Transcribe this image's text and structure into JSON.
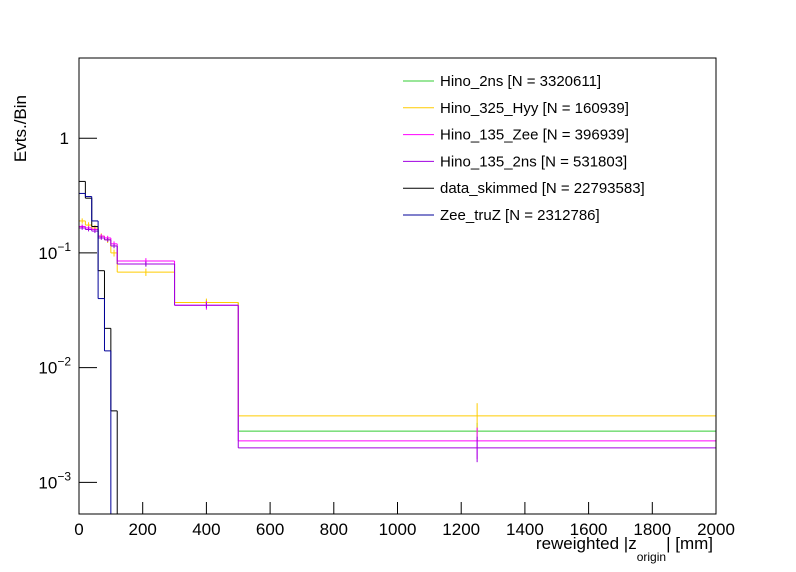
{
  "chart_data": {
    "type": "histogram",
    "y_label": "Evts./Bin",
    "x_label": {
      "before": "reweighted |z",
      "sub": "origin",
      "after": "| [mm]"
    },
    "bins": [
      0,
      20,
      40,
      60,
      80,
      100,
      120,
      300,
      500,
      2000
    ],
    "xlim": [
      0,
      2000
    ],
    "xticks": [
      0,
      200,
      400,
      600,
      800,
      1000,
      1200,
      1400,
      1600,
      1800,
      2000
    ],
    "ylim": [
      0.00053,
      5
    ],
    "log_y": true,
    "yticks": [
      {
        "value": 0.001,
        "label": "10",
        "exponent": "−3"
      },
      {
        "value": 0.01,
        "label": "10",
        "exponent": "−2"
      },
      {
        "value": 0.1,
        "label": "10",
        "exponent": "−1"
      },
      1
    ],
    "legend": "top-right",
    "series": [
      {
        "name": "Hino_2ns [N = 3320611]",
        "color": "#33cc33",
        "values": [
          0.17,
          0.165,
          0.16,
          0.14,
          0.13,
          0.115,
          0.08,
          0.037,
          0.0028
        ],
        "errors": [
          0.006,
          0.006,
          0.006,
          0.005,
          0.005,
          0.005,
          0.004,
          0.002,
          0.0005
        ]
      },
      {
        "name": "Hino_325_Hyy [N = 160939]",
        "color": "#ffcc00",
        "values": [
          0.19,
          0.175,
          0.165,
          0.14,
          0.13,
          0.1,
          0.068,
          0.037,
          0.0038
        ],
        "errors": [
          0.01,
          0.01,
          0.01,
          0.008,
          0.008,
          0.007,
          0.005,
          0.003,
          0.0011
        ]
      },
      {
        "name": "Hino_135_Zee [N = 396939]",
        "color": "#ff00ff",
        "values": [
          0.17,
          0.165,
          0.16,
          0.14,
          0.135,
          0.12,
          0.085,
          0.035,
          0.0023
        ],
        "errors": [
          0.007,
          0.007,
          0.007,
          0.006,
          0.006,
          0.006,
          0.005,
          0.003,
          0.0007
        ]
      },
      {
        "name": "Hino_135_2ns [N = 531803]",
        "color": "#a000e0",
        "values": [
          0.165,
          0.16,
          0.155,
          0.135,
          0.13,
          0.115,
          0.08,
          0.035,
          0.002
        ],
        "errors": [
          0.006,
          0.006,
          0.006,
          0.005,
          0.005,
          0.005,
          0.004,
          0.002,
          0.0005
        ]
      },
      {
        "name": "data_skimmed [N = 22793583]",
        "color": "#000000",
        "values": [
          0.42,
          0.3,
          0.17,
          0.07,
          0.022,
          0.0042,
          0,
          0,
          0
        ]
      },
      {
        "name": "Zee_truZ [N = 2312786]",
        "color": "#000099",
        "values": [
          0.33,
          0.31,
          0.19,
          0.04,
          0.014,
          0,
          0,
          0,
          0
        ]
      }
    ]
  }
}
